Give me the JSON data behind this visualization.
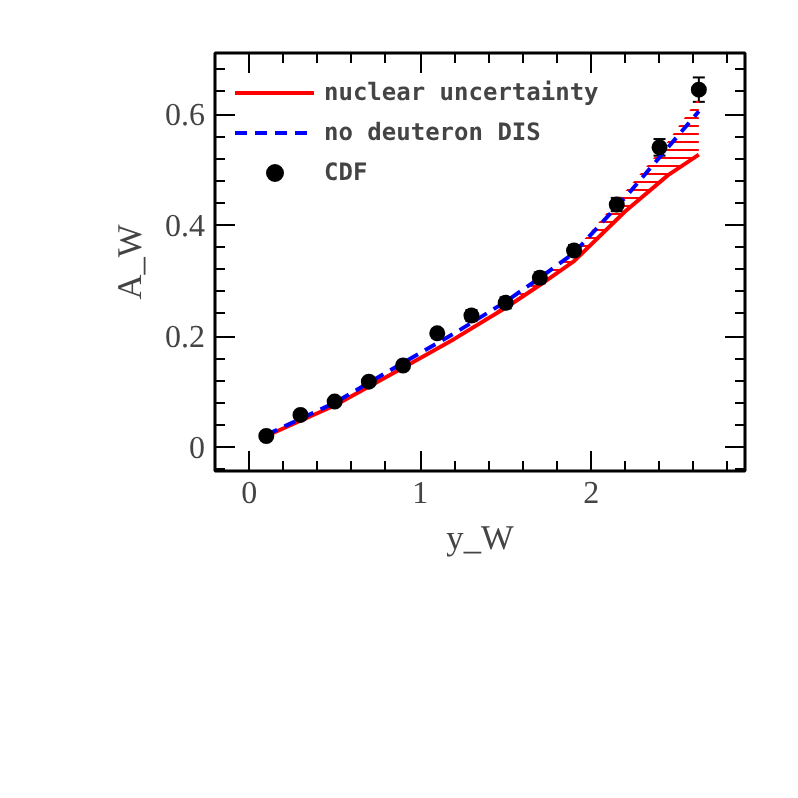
{
  "chart_data": {
    "type": "line",
    "xlabel": "y_W",
    "ylabel": "A_W",
    "xlim": [
      -0.2,
      2.9
    ],
    "ylim": [
      -0.043,
      0.71
    ],
    "xticks": [
      0,
      1,
      2
    ],
    "yticks": [
      0,
      0.2,
      0.4,
      0.6
    ],
    "grid": false,
    "legend": "top left",
    "series": [
      {
        "name": "nuclear uncertainty",
        "color": "#ff0000",
        "line_style": "solid",
        "x": [
          0.1,
          0.5,
          0.9,
          1.2,
          1.5,
          1.7,
          1.9,
          2.2,
          2.45,
          2.63
        ],
        "values": [
          0.02,
          0.075,
          0.143,
          0.195,
          0.251,
          0.292,
          0.335,
          0.425,
          0.49,
          0.527
        ],
        "lower": [
          0.02,
          0.075,
          0.143,
          0.195,
          0.251,
          0.292,
          0.335,
          0.425,
          0.49,
          0.527
        ],
        "upper": [
          0.02,
          0.075,
          0.145,
          0.198,
          0.256,
          0.302,
          0.353,
          0.461,
          0.551,
          0.63
        ]
      },
      {
        "name": "no deuteron DIS",
        "color": "#0000ff",
        "line_style": "dashed",
        "x": [
          0.1,
          0.5,
          0.9,
          1.2,
          1.5,
          1.7,
          1.9,
          2.2,
          2.45,
          2.63
        ],
        "values": [
          0.022,
          0.08,
          0.152,
          0.205,
          0.262,
          0.305,
          0.35,
          0.45,
          0.54,
          0.605
        ]
      },
      {
        "name": "CDF",
        "type": "scatter",
        "color": "#000000",
        "marker": "circle",
        "x": [
          0.1,
          0.3,
          0.5,
          0.7,
          0.9,
          1.1,
          1.3,
          1.5,
          1.7,
          1.9,
          2.15,
          2.4,
          2.63
        ],
        "values": [
          0.02,
          0.058,
          0.082,
          0.118,
          0.147,
          0.205,
          0.237,
          0.26,
          0.305,
          0.354,
          0.437,
          0.54,
          0.644
        ],
        "errors": [
          0.004,
          0.005,
          0.005,
          0.006,
          0.006,
          0.008,
          0.01,
          0.01,
          0.01,
          0.01,
          0.012,
          0.015,
          0.022
        ]
      }
    ]
  }
}
